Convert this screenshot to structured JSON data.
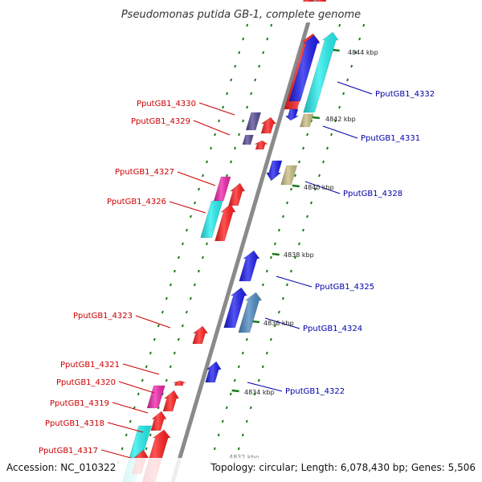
{
  "title": "Pseudomonas putida GB-1, complete genome",
  "accession": "Accession: NC_010322",
  "summary": "Topology: circular; Length: 6,078,430 bp; Genes: 5,506",
  "tick_labels": [
    "4844 kbp",
    "4842 kbp",
    "4840 kbp",
    "4838 kbp",
    "4836 kbp",
    "4834 kbp",
    "4832 kbp"
  ],
  "left_labels": [
    "PputGB1_4330",
    "PputGB1_4329",
    "PputGB1_4327",
    "PputGB1_4326",
    "PputGB1_4323",
    "PputGB1_4321",
    "PputGB1_4320",
    "PputGB1_4319",
    "PputGB1_4318",
    "PputGB1_4317"
  ],
  "right_labels": [
    "PputGB1_4332",
    "PputGB1_4331",
    "PputGB1_4328",
    "PputGB1_4325",
    "PputGB1_4324",
    "PputGB1_4322"
  ],
  "colors": {
    "left_label": "#cc0000",
    "right_label": "#0000aa",
    "backbone": "#8a8a8a",
    "tick": "#1a7a1a",
    "red": "#ff1a1a",
    "blue": "#1a1aee",
    "cyan": "#22eeee",
    "magenta": "#ee22aa",
    "tan": "#c8bd82",
    "steel": "#4a86c0",
    "purple": "#554a96"
  },
  "icons": [
    "forward-gene-arrow",
    "reverse-gene-arrow",
    "gene-box"
  ]
}
